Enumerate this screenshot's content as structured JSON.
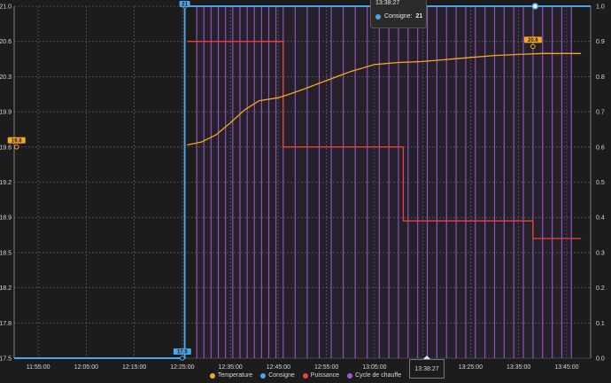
{
  "colors": {
    "background": "#1c1c1c",
    "grid": "#6a6a6a",
    "temperature": "#f5a623",
    "consigne": "#4ea3e6",
    "puissance": "#e8453c",
    "cycle": "#a15cd6"
  },
  "chart_data": {
    "type": "line",
    "x_unit": "time",
    "x_range": [
      "11:50:00",
      "13:50:00"
    ],
    "x_ticks": [
      "11:55:00",
      "12:05:00",
      "12:15:00",
      "12:25:00",
      "12:35:00",
      "12:45:00",
      "12:55:00",
      "13:05:00",
      "13:15:00",
      "13:25:00",
      "13:35:00",
      "13:45:00"
    ],
    "y_left": {
      "range": [
        17.5,
        21.0
      ],
      "ticks": [
        "17.5",
        "17.8",
        "18.2",
        "18.5",
        "18.9",
        "19.2",
        "19.6",
        "19.9",
        "20.3",
        "20.6",
        "21.0"
      ]
    },
    "y_right": {
      "range": [
        0,
        1
      ],
      "ticks": [
        "0.0",
        "0.1",
        "0.2",
        "0.3",
        "0.4",
        "0.5",
        "0.6",
        "0.7",
        "0.8",
        "0.9",
        "1.0"
      ]
    },
    "grid": true,
    "legend_position": "bottom",
    "series": [
      {
        "name": "Temperature",
        "axis": "left",
        "color": "#f5a623",
        "points": [
          [
            "12:26:00",
            19.62
          ],
          [
            "12:29:00",
            19.65
          ],
          [
            "12:32:00",
            19.72
          ],
          [
            "12:35:00",
            19.84
          ],
          [
            "12:38:00",
            19.97
          ],
          [
            "12:41:00",
            20.06
          ],
          [
            "12:45:00",
            20.09
          ],
          [
            "12:47:00",
            20.12
          ],
          [
            "12:50:00",
            20.17
          ],
          [
            "12:55:00",
            20.26
          ],
          [
            "13:00:00",
            20.35
          ],
          [
            "13:05:00",
            20.42
          ],
          [
            "13:10:00",
            20.44
          ],
          [
            "13:15:00",
            20.45
          ],
          [
            "13:20:00",
            20.47
          ],
          [
            "13:25:00",
            20.49
          ],
          [
            "13:30:00",
            20.51
          ],
          [
            "13:35:00",
            20.52
          ],
          [
            "13:40:00",
            20.53
          ],
          [
            "13:45:00",
            20.53
          ],
          [
            "13:48:00",
            20.53
          ]
        ]
      },
      {
        "name": "Consigne",
        "axis": "left",
        "color": "#4ea3e6",
        "step": true,
        "points": [
          [
            "11:50:00",
            17.5
          ],
          [
            "12:25:30",
            17.5
          ],
          [
            "12:25:30",
            21.0
          ],
          [
            "13:50:00",
            21.0
          ]
        ]
      },
      {
        "name": "Puissance",
        "axis": "right",
        "color": "#e8453c",
        "step": true,
        "points": [
          [
            "12:26:00",
            0.9
          ],
          [
            "12:46:00",
            0.9
          ],
          [
            "12:46:00",
            0.6
          ],
          [
            "13:11:00",
            0.6
          ],
          [
            "13:11:00",
            0.39
          ],
          [
            "13:38:00",
            0.39
          ],
          [
            "13:38:00",
            0.34
          ],
          [
            "13:48:00",
            0.34
          ]
        ]
      },
      {
        "name": "Cycle de chauffe",
        "axis": "right",
        "color": "#a15cd6",
        "pulse_times": [
          "12:28:00",
          "12:29:30",
          "12:31:00",
          "12:32:30",
          "12:34:00",
          "12:35:30",
          "12:37:00",
          "12:38:30",
          "12:40:00",
          "12:41:30",
          "12:43:00",
          "12:44:30",
          "12:46:00",
          "12:48:30",
          "12:51:00",
          "12:53:30",
          "12:56:00",
          "12:58:30",
          "13:01:00",
          "13:03:30",
          "13:06:00",
          "13:08:00",
          "13:10:00",
          "13:12:00",
          "13:14:00",
          "13:16:00",
          "13:18:00",
          "13:20:00",
          "13:22:00",
          "13:24:00",
          "13:26:00",
          "13:28:00",
          "13:30:00",
          "13:32:00",
          "13:34:00",
          "13:36:00",
          "13:38:00",
          "13:40:00",
          "13:42:00",
          "13:44:00",
          "13:46:00"
        ]
      }
    ],
    "markers": [
      {
        "series": "Temperature",
        "label": "19.6",
        "x": "11:50:30",
        "y": 19.6
      },
      {
        "series": "Temperature",
        "label": "20.6",
        "x": "13:38:00",
        "y": 20.6
      },
      {
        "series": "Consigne",
        "label": "17.5",
        "x": "12:25:00",
        "y": 17.5
      },
      {
        "series": "Consigne",
        "label": "21",
        "x": "12:25:30",
        "y": 21.0
      }
    ],
    "tooltip": {
      "title": "13:38:27",
      "series": "Consigne",
      "label": "Consigne:",
      "value": "21"
    },
    "crosshair_time": "13:38:27"
  },
  "legend": [
    {
      "name": "Temperature",
      "color": "#f5a623"
    },
    {
      "name": "Consigne",
      "color": "#4ea3e6"
    },
    {
      "name": "Puissance",
      "color": "#e8453c"
    },
    {
      "name": "Cycle de chauffe",
      "color": "#a15cd6"
    }
  ]
}
